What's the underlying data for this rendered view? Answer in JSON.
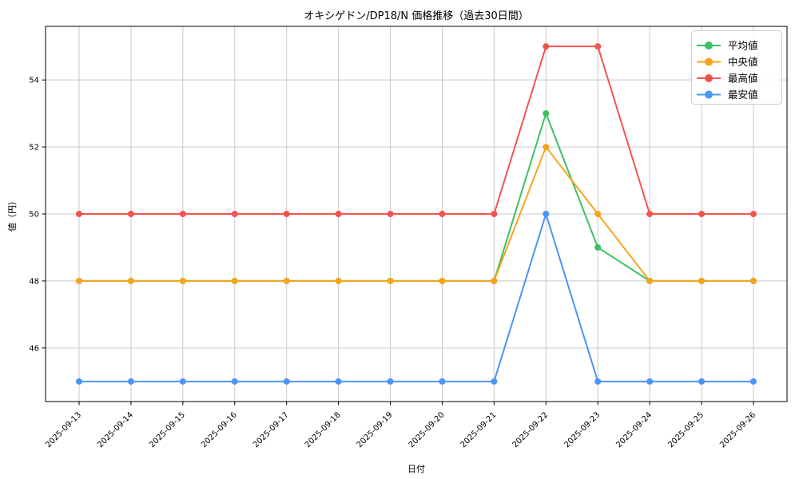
{
  "figure": {
    "background": "#ffffff"
  },
  "chart_data": {
    "type": "line",
    "title": "オキシゲドン/DP18/N 価格推移（過去30日間）",
    "xlabel": "日付",
    "ylabel": "値（円）",
    "categories": [
      "2025-09-13",
      "2025-09-14",
      "2025-09-15",
      "2025-09-16",
      "2025-09-17",
      "2025-09-18",
      "2025-09-19",
      "2025-09-20",
      "2025-09-21",
      "2025-09-22",
      "2025-09-23",
      "2025-09-24",
      "2025-09-25",
      "2025-09-26"
    ],
    "series": [
      {
        "key": "average",
        "name": "平均値",
        "color": "#3CC065",
        "values": [
          48,
          48,
          48,
          48,
          48,
          48,
          48,
          48,
          48,
          53,
          49,
          48,
          48,
          48
        ]
      },
      {
        "key": "median",
        "name": "中央値",
        "color": "#F6A41D",
        "values": [
          48,
          48,
          48,
          48,
          48,
          48,
          48,
          48,
          48,
          52,
          50,
          48,
          48,
          48
        ]
      },
      {
        "key": "highest",
        "name": "最高値",
        "color": "#F4544D",
        "values": [
          50,
          50,
          50,
          50,
          50,
          50,
          50,
          50,
          50,
          55,
          55,
          50,
          50,
          50
        ]
      },
      {
        "key": "lowest",
        "name": "最安値",
        "color": "#4B95F5",
        "values": [
          45,
          45,
          45,
          45,
          45,
          45,
          45,
          45,
          45,
          50,
          45,
          45,
          45,
          45
        ]
      }
    ],
    "ylim": [
      44.4,
      55.6
    ],
    "yticks": [
      46,
      48,
      50,
      52,
      54
    ],
    "grid": true,
    "grid_color": "#c9c9c9",
    "axis_color": "#000000",
    "legend": {
      "position": "upper right",
      "border_color": "#cccccc",
      "background": "#ffffff"
    }
  }
}
